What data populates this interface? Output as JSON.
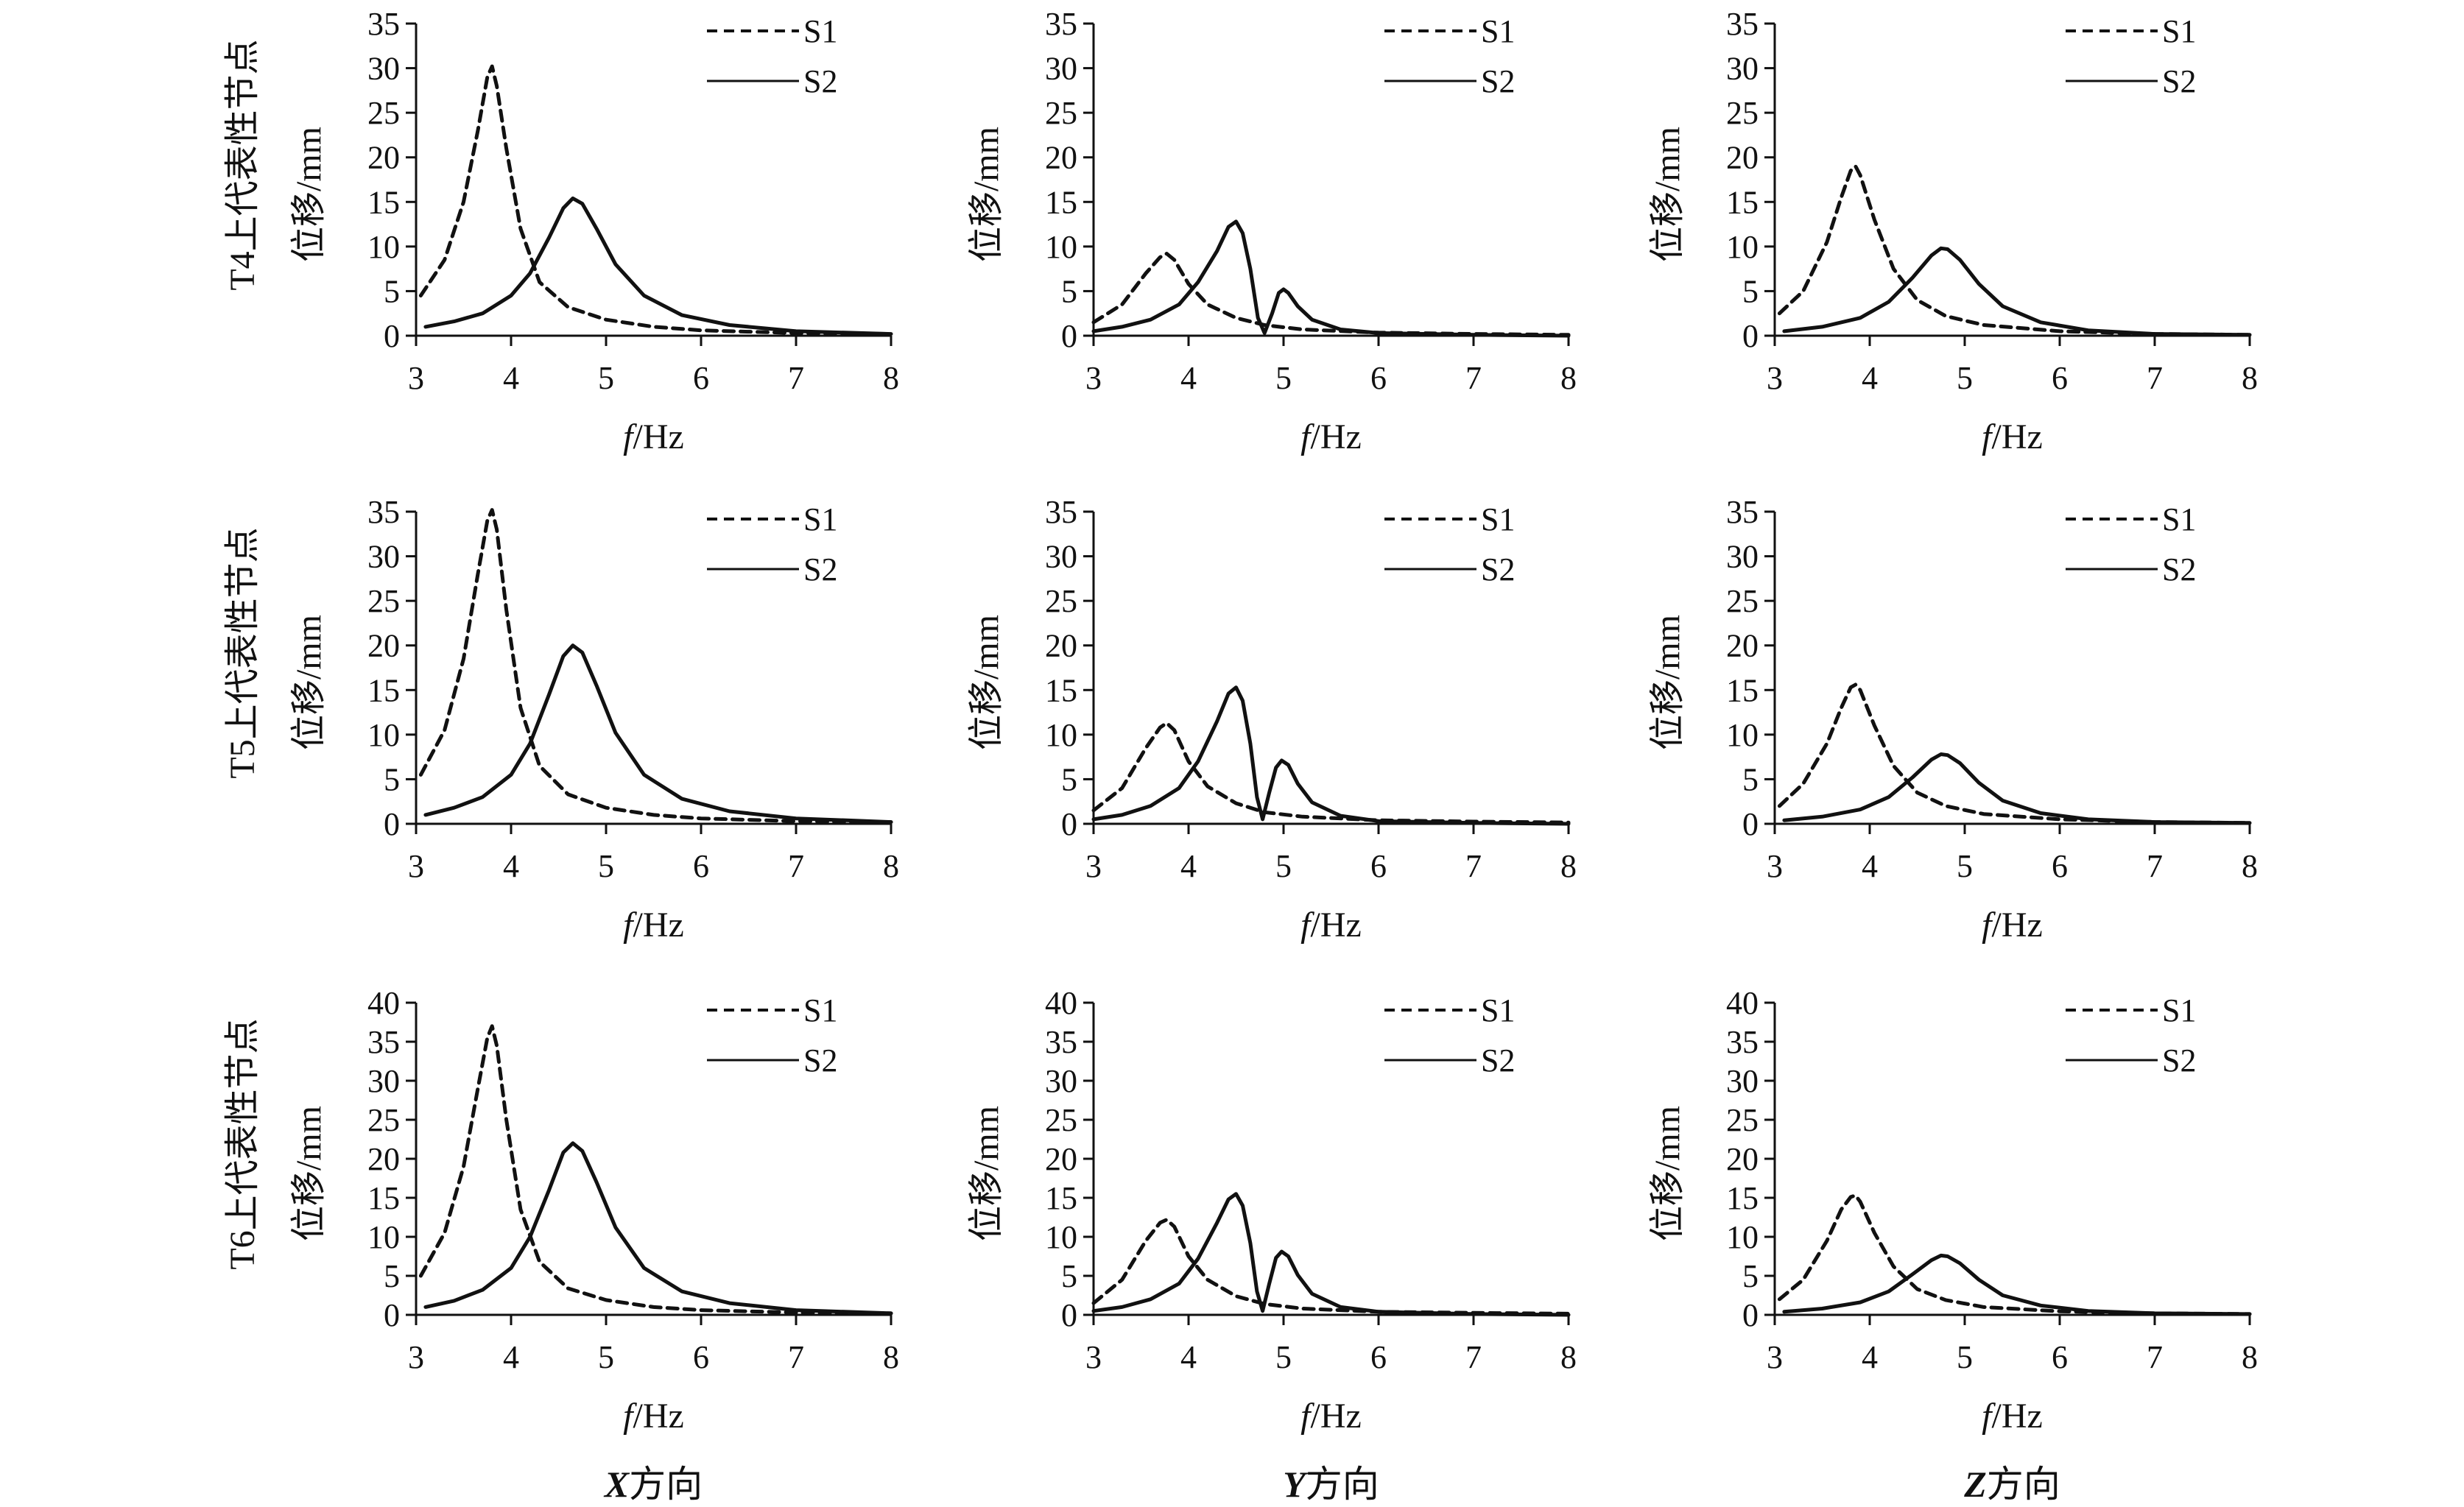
{
  "figure": {
    "column_labels": [
      {
        "axis": "X",
        "suffix": "方向"
      },
      {
        "axis": "Y",
        "suffix": "方向"
      },
      {
        "axis": "Z",
        "suffix": "方向"
      }
    ],
    "row_labels": [
      "T4上代表性节点",
      "T5上代表性节点",
      "T6上代表性节点"
    ],
    "ylabel": "位移/mm",
    "xlabel_italic": "f",
    "xlabel_rest": "/Hz",
    "colors": {
      "line": "#111111",
      "background": "#ffffff"
    }
  },
  "chart_data": [
    {
      "type": "line",
      "row": 0,
      "col": 0,
      "xlim": [
        3,
        8
      ],
      "ylim": [
        0,
        35
      ],
      "xticks": [
        3,
        4,
        5,
        6,
        7,
        8
      ],
      "yticks": [
        0,
        5,
        10,
        15,
        20,
        25,
        30,
        35
      ],
      "series": [
        {
          "name": "S1",
          "style": "dashed",
          "x": [
            3.05,
            3.3,
            3.5,
            3.65,
            3.75,
            3.8,
            3.85,
            3.95,
            4.1,
            4.3,
            4.6,
            5.0,
            5.5,
            6.0,
            7.0,
            8.0
          ],
          "y": [
            4.5,
            8.5,
            15,
            23,
            29,
            30.2,
            28,
            21,
            12,
            6,
            3.2,
            1.8,
            1.0,
            0.6,
            0.3,
            0.2
          ]
        },
        {
          "name": "S2",
          "style": "solid",
          "x": [
            3.1,
            3.4,
            3.7,
            4.0,
            4.2,
            4.4,
            4.55,
            4.65,
            4.75,
            4.9,
            5.1,
            5.4,
            5.8,
            6.3,
            7.0,
            8.0
          ],
          "y": [
            1.0,
            1.6,
            2.5,
            4.5,
            7.0,
            11,
            14.3,
            15.4,
            14.8,
            12,
            8,
            4.5,
            2.3,
            1.2,
            0.5,
            0.2
          ]
        }
      ]
    },
    {
      "type": "line",
      "row": 0,
      "col": 1,
      "xlim": [
        3,
        8
      ],
      "ylim": [
        0,
        35
      ],
      "xticks": [
        3,
        4,
        5,
        6,
        7,
        8
      ],
      "yticks": [
        0,
        5,
        10,
        15,
        20,
        25,
        30,
        35
      ],
      "series": [
        {
          "name": "S1",
          "style": "dashed",
          "x": [
            3.0,
            3.3,
            3.55,
            3.7,
            3.77,
            3.85,
            4.0,
            4.2,
            4.5,
            4.8,
            5.2,
            6.0,
            7.0,
            8.0
          ],
          "y": [
            1.5,
            3.5,
            7.0,
            8.8,
            9.2,
            8.5,
            5.8,
            3.5,
            2.0,
            1.2,
            0.7,
            0.35,
            0.2,
            0.1
          ]
        },
        {
          "name": "S2",
          "style": "solid",
          "x": [
            3.0,
            3.3,
            3.6,
            3.9,
            4.1,
            4.3,
            4.42,
            4.5,
            4.57,
            4.65,
            4.73,
            4.8,
            4.88,
            4.95,
            5.0,
            5.05,
            5.15,
            5.3,
            5.6,
            6.0,
            7.0,
            8.0
          ],
          "y": [
            0.5,
            1.0,
            1.8,
            3.5,
            6.0,
            9.5,
            12.2,
            12.8,
            11.5,
            7.5,
            2.0,
            0.3,
            2.5,
            4.8,
            5.2,
            4.8,
            3.3,
            1.8,
            0.7,
            0.3,
            0.1,
            0.0
          ]
        }
      ]
    },
    {
      "type": "line",
      "row": 0,
      "col": 2,
      "xlim": [
        3,
        8
      ],
      "ylim": [
        0,
        35
      ],
      "xticks": [
        3,
        4,
        5,
        6,
        7,
        8
      ],
      "yticks": [
        0,
        5,
        10,
        15,
        20,
        25,
        30,
        35
      ],
      "series": [
        {
          "name": "S1",
          "style": "dashed",
          "x": [
            3.05,
            3.3,
            3.55,
            3.7,
            3.8,
            3.85,
            3.9,
            4.05,
            4.25,
            4.5,
            4.8,
            5.2,
            6.0,
            7.0,
            8.0
          ],
          "y": [
            2.5,
            5.0,
            10.5,
            15.5,
            18.5,
            19.0,
            18.0,
            13.0,
            7.5,
            4.0,
            2.2,
            1.2,
            0.5,
            0.2,
            0.1
          ]
        },
        {
          "name": "S2",
          "style": "solid",
          "x": [
            3.1,
            3.5,
            3.9,
            4.2,
            4.45,
            4.65,
            4.75,
            4.82,
            4.95,
            5.15,
            5.4,
            5.8,
            6.3,
            7.0,
            8.0
          ],
          "y": [
            0.5,
            1.0,
            2.0,
            3.8,
            6.5,
            9.0,
            9.8,
            9.7,
            8.5,
            5.8,
            3.3,
            1.5,
            0.6,
            0.2,
            0.1
          ]
        }
      ]
    },
    {
      "type": "line",
      "row": 1,
      "col": 0,
      "xlim": [
        3,
        8
      ],
      "ylim": [
        0,
        35
      ],
      "xticks": [
        3,
        4,
        5,
        6,
        7,
        8
      ],
      "yticks": [
        0,
        5,
        10,
        15,
        20,
        25,
        30,
        35
      ],
      "series": [
        {
          "name": "S1",
          "style": "dashed",
          "x": [
            3.05,
            3.3,
            3.5,
            3.65,
            3.75,
            3.8,
            3.85,
            3.95,
            4.1,
            4.3,
            4.6,
            5.0,
            5.5,
            6.0,
            7.0,
            8.0
          ],
          "y": [
            5.5,
            10.5,
            18.5,
            28,
            34,
            35.2,
            33,
            24,
            13,
            6.5,
            3.3,
            1.8,
            1.0,
            0.6,
            0.3,
            0.2
          ]
        },
        {
          "name": "S2",
          "style": "solid",
          "x": [
            3.1,
            3.4,
            3.7,
            4.0,
            4.2,
            4.4,
            4.55,
            4.65,
            4.75,
            4.9,
            5.1,
            5.4,
            5.8,
            6.3,
            7.0,
            8.0
          ],
          "y": [
            1.0,
            1.8,
            3.0,
            5.5,
            9.0,
            14.5,
            18.8,
            20.0,
            19.2,
            15.5,
            10.2,
            5.5,
            2.8,
            1.4,
            0.6,
            0.2
          ]
        }
      ]
    },
    {
      "type": "line",
      "row": 1,
      "col": 1,
      "xlim": [
        3,
        8
      ],
      "ylim": [
        0,
        35
      ],
      "xticks": [
        3,
        4,
        5,
        6,
        7,
        8
      ],
      "yticks": [
        0,
        5,
        10,
        15,
        20,
        25,
        30,
        35
      ],
      "series": [
        {
          "name": "S1",
          "style": "dashed",
          "x": [
            3.0,
            3.3,
            3.55,
            3.7,
            3.77,
            3.85,
            4.0,
            4.2,
            4.5,
            4.8,
            5.2,
            6.0,
            7.0,
            8.0
          ],
          "y": [
            1.5,
            4.0,
            8.5,
            10.8,
            11.3,
            10.5,
            7.0,
            4.2,
            2.3,
            1.3,
            0.8,
            0.4,
            0.25,
            0.15
          ]
        },
        {
          "name": "S2",
          "style": "solid",
          "x": [
            3.0,
            3.3,
            3.6,
            3.9,
            4.1,
            4.3,
            4.42,
            4.5,
            4.57,
            4.65,
            4.72,
            4.78,
            4.85,
            4.92,
            4.98,
            5.05,
            5.15,
            5.3,
            5.6,
            6.0,
            7.0,
            8.0
          ],
          "y": [
            0.5,
            1.0,
            2.0,
            4.0,
            7.0,
            11.5,
            14.6,
            15.3,
            13.8,
            9.0,
            3.0,
            0.5,
            3.5,
            6.3,
            7.1,
            6.6,
            4.5,
            2.4,
            0.9,
            0.3,
            0.1,
            0.0
          ]
        }
      ]
    },
    {
      "type": "line",
      "row": 1,
      "col": 2,
      "xlim": [
        3,
        8
      ],
      "ylim": [
        0,
        35
      ],
      "xticks": [
        3,
        4,
        5,
        6,
        7,
        8
      ],
      "yticks": [
        0,
        5,
        10,
        15,
        20,
        25,
        30,
        35
      ],
      "series": [
        {
          "name": "S1",
          "style": "dashed",
          "x": [
            3.05,
            3.3,
            3.55,
            3.7,
            3.8,
            3.85,
            3.9,
            4.05,
            4.25,
            4.5,
            4.8,
            5.2,
            6.0,
            7.0,
            8.0
          ],
          "y": [
            2.0,
            4.5,
            9.0,
            13.0,
            15.3,
            15.6,
            15.0,
            11.0,
            6.5,
            3.5,
            2.0,
            1.1,
            0.5,
            0.2,
            0.1
          ]
        },
        {
          "name": "S2",
          "style": "solid",
          "x": [
            3.1,
            3.5,
            3.9,
            4.2,
            4.45,
            4.65,
            4.75,
            4.82,
            4.95,
            5.15,
            5.4,
            5.8,
            6.3,
            7.0,
            8.0
          ],
          "y": [
            0.4,
            0.8,
            1.6,
            3.0,
            5.2,
            7.2,
            7.8,
            7.7,
            6.8,
            4.6,
            2.6,
            1.2,
            0.5,
            0.2,
            0.1
          ]
        }
      ]
    },
    {
      "type": "line",
      "row": 2,
      "col": 0,
      "xlim": [
        3,
        8
      ],
      "ylim": [
        0,
        40
      ],
      "xticks": [
        3,
        4,
        5,
        6,
        7,
        8
      ],
      "yticks": [
        0,
        5,
        10,
        15,
        20,
        25,
        30,
        35,
        40
      ],
      "series": [
        {
          "name": "S1",
          "style": "dashed",
          "x": [
            3.05,
            3.3,
            3.5,
            3.65,
            3.75,
            3.8,
            3.85,
            3.95,
            4.1,
            4.3,
            4.6,
            5.0,
            5.5,
            6.0,
            7.0,
            8.0
          ],
          "y": [
            5.0,
            10.5,
            19,
            29,
            35.5,
            37,
            34.5,
            25,
            13.5,
            6.8,
            3.4,
            1.9,
            1.0,
            0.6,
            0.3,
            0.2
          ]
        },
        {
          "name": "S2",
          "style": "solid",
          "x": [
            3.1,
            3.4,
            3.7,
            4.0,
            4.2,
            4.4,
            4.55,
            4.65,
            4.75,
            4.9,
            5.1,
            5.4,
            5.8,
            6.3,
            7.0,
            8.0
          ],
          "y": [
            1.0,
            1.8,
            3.2,
            6.0,
            10,
            16,
            20.8,
            22.0,
            21.0,
            17.0,
            11.2,
            6.0,
            3.0,
            1.5,
            0.6,
            0.2
          ]
        }
      ]
    },
    {
      "type": "line",
      "row": 2,
      "col": 1,
      "xlim": [
        3,
        8
      ],
      "ylim": [
        0,
        40
      ],
      "xticks": [
        3,
        4,
        5,
        6,
        7,
        8
      ],
      "yticks": [
        0,
        5,
        10,
        15,
        20,
        25,
        30,
        35,
        40
      ],
      "series": [
        {
          "name": "S1",
          "style": "dashed",
          "x": [
            3.0,
            3.3,
            3.55,
            3.7,
            3.77,
            3.85,
            4.0,
            4.2,
            4.5,
            4.8,
            5.2,
            6.0,
            7.0,
            8.0
          ],
          "y": [
            1.5,
            4.5,
            9.5,
            11.8,
            12.2,
            11.3,
            7.5,
            4.5,
            2.4,
            1.4,
            0.8,
            0.4,
            0.25,
            0.15
          ]
        },
        {
          "name": "S2",
          "style": "solid",
          "x": [
            3.0,
            3.3,
            3.6,
            3.9,
            4.1,
            4.3,
            4.42,
            4.5,
            4.57,
            4.65,
            4.72,
            4.78,
            4.85,
            4.92,
            4.98,
            5.05,
            5.15,
            5.3,
            5.6,
            6.0,
            7.0,
            8.0
          ],
          "y": [
            0.5,
            1.0,
            2.0,
            4.0,
            7.2,
            11.8,
            14.8,
            15.5,
            14.0,
            9.2,
            3.0,
            0.5,
            4.0,
            7.3,
            8.1,
            7.5,
            5.1,
            2.7,
            1.0,
            0.4,
            0.1,
            0.0
          ]
        }
      ]
    },
    {
      "type": "line",
      "row": 2,
      "col": 2,
      "xlim": [
        3,
        8
      ],
      "ylim": [
        0,
        40
      ],
      "xticks": [
        3,
        4,
        5,
        6,
        7,
        8
      ],
      "yticks": [
        0,
        5,
        10,
        15,
        20,
        25,
        30,
        35,
        40
      ],
      "series": [
        {
          "name": "S1",
          "style": "dashed",
          "x": [
            3.05,
            3.3,
            3.55,
            3.7,
            3.8,
            3.85,
            3.9,
            4.05,
            4.25,
            4.5,
            4.8,
            5.2,
            6.0,
            7.0,
            8.0
          ],
          "y": [
            2.0,
            4.5,
            9.5,
            13.5,
            15.1,
            15.3,
            14.5,
            10.5,
            6.2,
            3.3,
            1.9,
            1.0,
            0.45,
            0.2,
            0.1
          ]
        },
        {
          "name": "S2",
          "style": "solid",
          "x": [
            3.1,
            3.5,
            3.9,
            4.2,
            4.45,
            4.65,
            4.75,
            4.82,
            4.95,
            5.15,
            5.4,
            5.8,
            6.3,
            7.0,
            8.0
          ],
          "y": [
            0.4,
            0.8,
            1.6,
            3.0,
            5.2,
            7.0,
            7.6,
            7.5,
            6.6,
            4.5,
            2.5,
            1.2,
            0.5,
            0.2,
            0.1
          ]
        }
      ]
    }
  ]
}
